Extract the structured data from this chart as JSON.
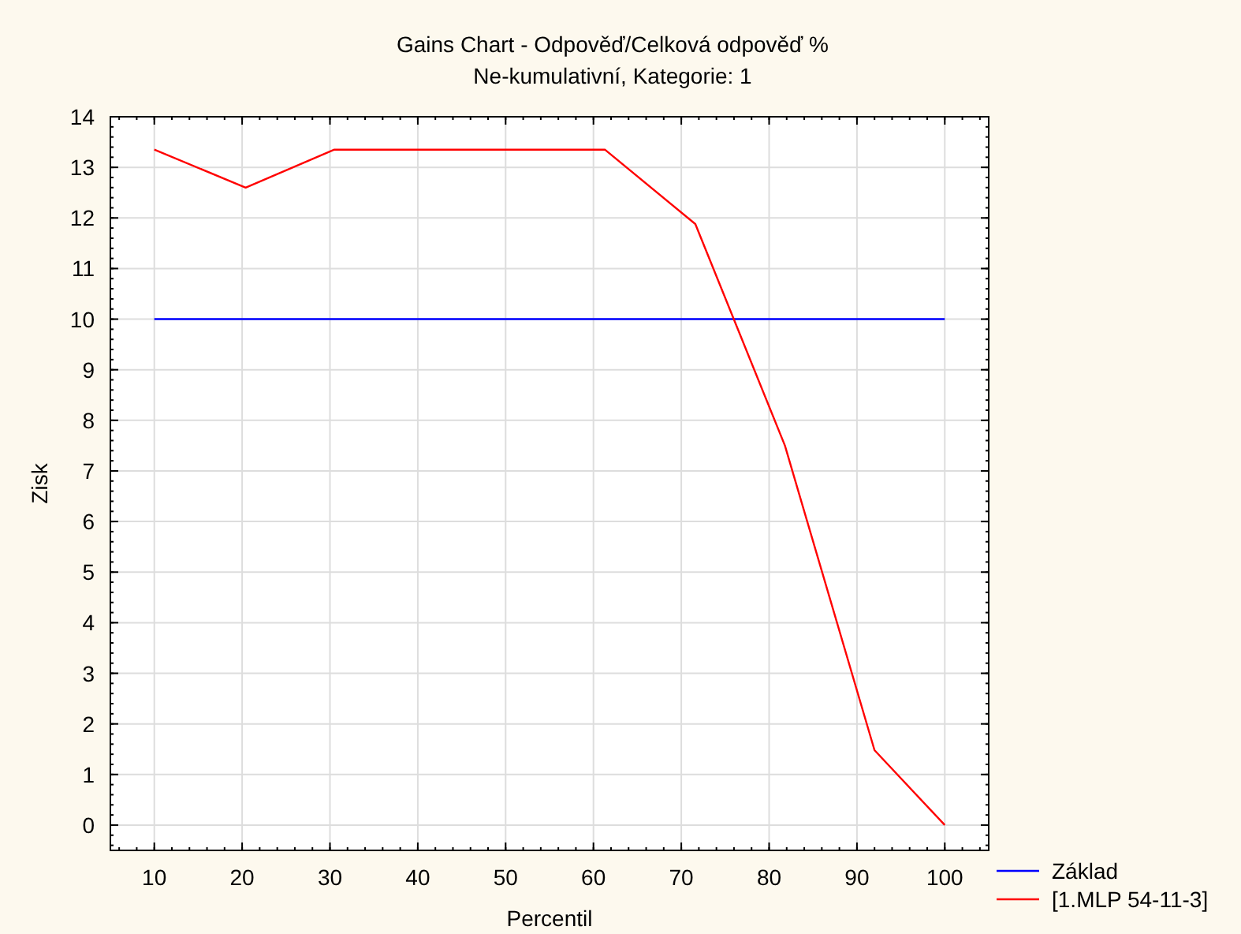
{
  "chart_data": {
    "type": "line",
    "title": "Gains Chart - Odpověď/Celková odpověď %",
    "subtitle": "Ne-kumulativní, Kategorie: 1",
    "xlabel": "Percentil",
    "ylabel": "Zisk",
    "xlim": [
      5,
      105
    ],
    "xticks": [
      10,
      20,
      30,
      40,
      50,
      60,
      70,
      80,
      90,
      100
    ],
    "ylim": [
      -0.5,
      14
    ],
    "yticks": [
      0,
      1,
      2,
      3,
      4,
      5,
      6,
      7,
      8,
      9,
      10,
      11,
      12,
      13,
      14
    ],
    "grid": true,
    "legend": "bottom right",
    "marker": "none",
    "line_style": "solid",
    "series": [
      {
        "name": "Základ",
        "color": "#0000ff",
        "x": [
          10,
          100
        ],
        "values": [
          10,
          10
        ]
      },
      {
        "name": "[1.MLP 54-11-3]",
        "color": "#ff0000",
        "x": [
          10,
          20.4,
          30.5,
          61.3,
          71.6,
          81.8,
          92,
          100
        ],
        "values": [
          13.35,
          12.6,
          13.35,
          13.35,
          11.88,
          7.5,
          1.48,
          0
        ]
      }
    ]
  }
}
